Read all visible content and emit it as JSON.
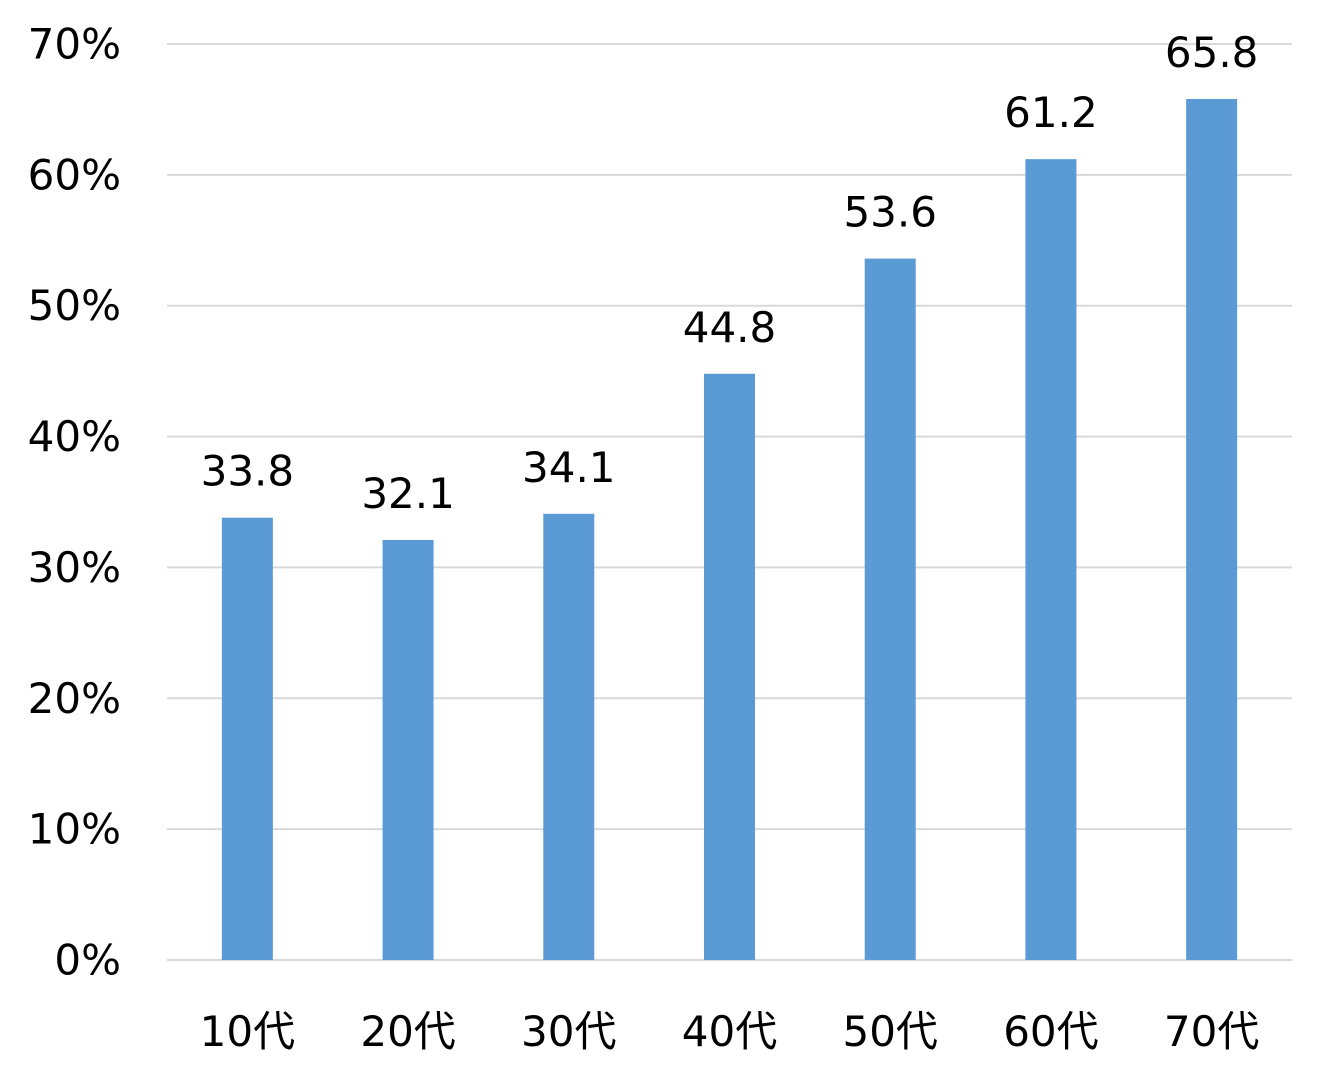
{
  "chart_data": {
    "type": "bar",
    "categories": [
      "10代",
      "20代",
      "30代",
      "40代",
      "50代",
      "60代",
      "70代"
    ],
    "values": [
      33.8,
      32.1,
      34.1,
      44.8,
      53.6,
      61.2,
      65.8
    ],
    "data_labels": [
      "33.8",
      "32.1",
      "34.1",
      "44.8",
      "53.6",
      "61.2",
      "65.8"
    ],
    "y_ticks": [
      0,
      10,
      20,
      30,
      40,
      50,
      60,
      70
    ],
    "y_tick_labels": [
      "0%",
      "10%",
      "20%",
      "30%",
      "40%",
      "50%",
      "60%",
      "70%"
    ],
    "ylim": [
      0,
      70
    ],
    "grid": true,
    "legend": "none",
    "title": "",
    "xlabel": "",
    "ylabel": "",
    "colors": {
      "bar": "#5b9bd5",
      "gridline": "#d9d9d9",
      "text": "#000000"
    }
  }
}
